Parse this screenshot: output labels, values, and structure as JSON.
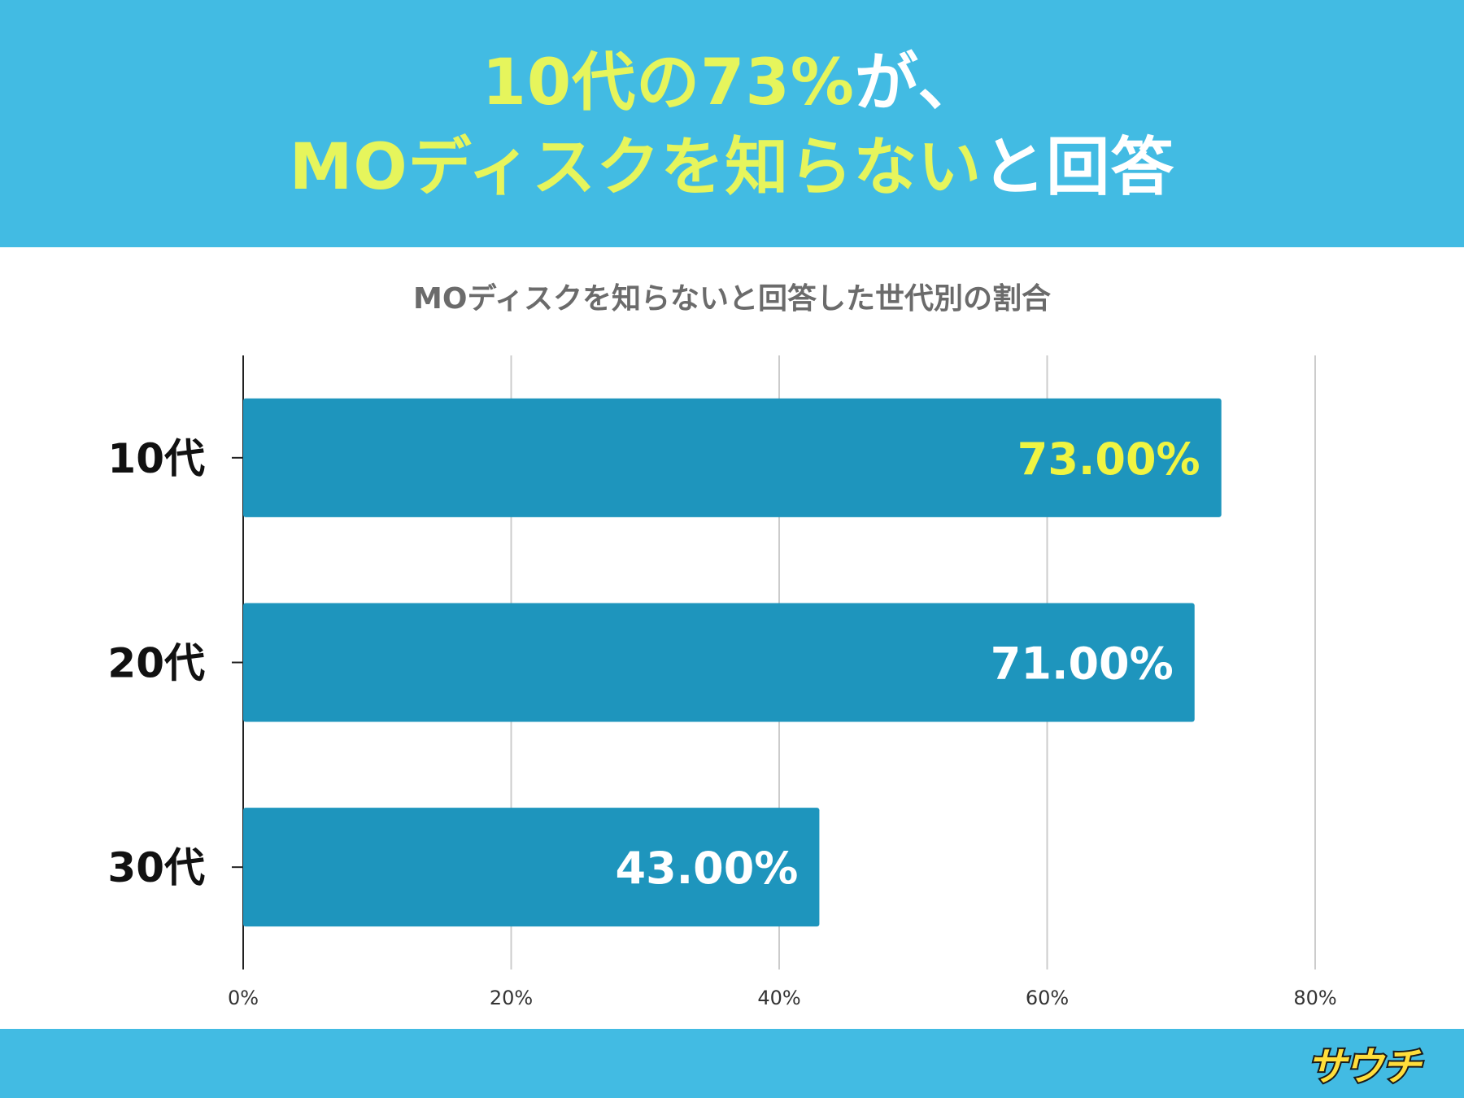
{
  "header": {
    "line1_yellow": "10代の73%",
    "line1_white": "が、",
    "line2_yellow": "MOディスクを知らない",
    "line2_white": "と回答"
  },
  "colors": {
    "header_bg": "#42bbe3",
    "bar": "#1e95bd",
    "highlight_label": "#f0f542",
    "label": "#ffffff"
  },
  "chart_data": {
    "type": "bar",
    "orientation": "horizontal",
    "title": "MOディスクを知らないと回答した世代別の割合",
    "categories": [
      "10代",
      "20代",
      "30代"
    ],
    "values": [
      73,
      71,
      43
    ],
    "data_labels": [
      "73.00%",
      "71.00%",
      "43.00%"
    ],
    "highlight_index": 0,
    "xlim": [
      0,
      80
    ],
    "xticks": [
      "0%",
      "20%",
      "40%",
      "60%",
      "80%"
    ],
    "grid": true,
    "legend": "none"
  },
  "footer": {
    "logo_text": "サウチ"
  }
}
